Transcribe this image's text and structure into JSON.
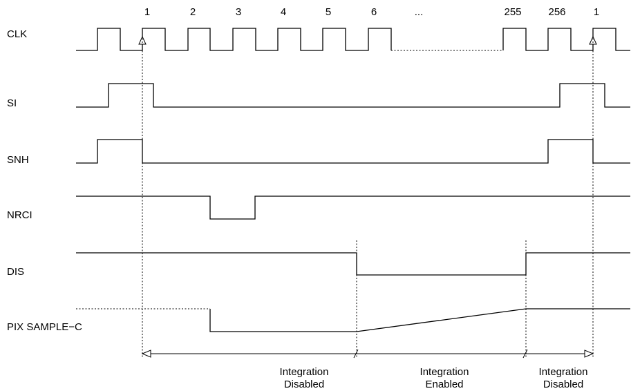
{
  "signals": {
    "clk": "CLK",
    "si": "SI",
    "snh": "SNH",
    "nrci": "NRCI",
    "dis": "DIS",
    "pix": "PIX SAMPLE−C"
  },
  "clock_numbers": [
    "1",
    "2",
    "3",
    "4",
    "5",
    "6",
    "...",
    "255",
    "256",
    "1"
  ],
  "phases": {
    "left": [
      "Integration",
      "Disabled"
    ],
    "middle": [
      "Integration",
      "Enabled"
    ],
    "right": [
      "Integration",
      "Disabled"
    ]
  }
}
